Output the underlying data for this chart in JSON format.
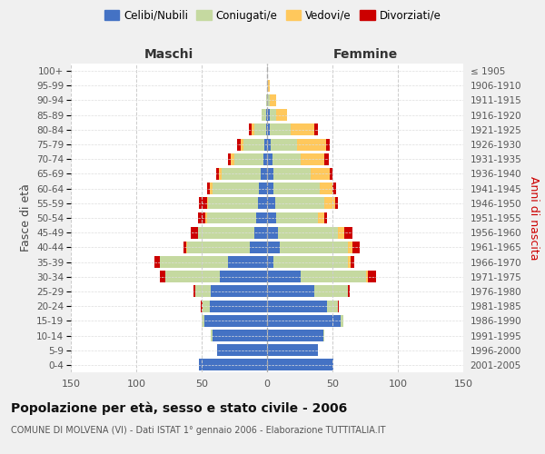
{
  "age_groups": [
    "0-4",
    "5-9",
    "10-14",
    "15-19",
    "20-24",
    "25-29",
    "30-34",
    "35-39",
    "40-44",
    "45-49",
    "50-54",
    "55-59",
    "60-64",
    "65-69",
    "70-74",
    "75-79",
    "80-84",
    "85-89",
    "90-94",
    "95-99",
    "100+"
  ],
  "birth_years": [
    "2001-2005",
    "1996-2000",
    "1991-1995",
    "1986-1990",
    "1981-1985",
    "1976-1980",
    "1971-1975",
    "1966-1970",
    "1961-1965",
    "1956-1960",
    "1951-1955",
    "1946-1950",
    "1941-1945",
    "1936-1940",
    "1931-1935",
    "1926-1930",
    "1921-1925",
    "1916-1920",
    "1911-1915",
    "1906-1910",
    "≤ 1905"
  ],
  "male": {
    "celibi": [
      52,
      38,
      42,
      48,
      44,
      43,
      36,
      30,
      13,
      10,
      8,
      7,
      6,
      5,
      3,
      2,
      1,
      1,
      0,
      0,
      0
    ],
    "coniugati": [
      0,
      0,
      1,
      2,
      5,
      12,
      42,
      52,
      48,
      43,
      38,
      38,
      36,
      30,
      22,
      16,
      9,
      3,
      1,
      0,
      0
    ],
    "vedovi": [
      0,
      0,
      0,
      0,
      0,
      0,
      0,
      0,
      1,
      0,
      1,
      1,
      2,
      2,
      3,
      2,
      2,
      0,
      0,
      0,
      0
    ],
    "divorziati": [
      0,
      0,
      0,
      0,
      2,
      1,
      4,
      4,
      2,
      5,
      6,
      6,
      2,
      2,
      2,
      3,
      2,
      0,
      0,
      0,
      0
    ]
  },
  "female": {
    "nubili": [
      51,
      39,
      43,
      56,
      46,
      36,
      26,
      5,
      10,
      8,
      7,
      6,
      5,
      5,
      4,
      3,
      2,
      2,
      1,
      1,
      0
    ],
    "coniugate": [
      0,
      0,
      1,
      2,
      8,
      26,
      50,
      57,
      52,
      46,
      32,
      38,
      35,
      28,
      22,
      20,
      16,
      5,
      1,
      0,
      0
    ],
    "vedove": [
      0,
      0,
      0,
      0,
      0,
      0,
      1,
      2,
      3,
      5,
      5,
      8,
      10,
      15,
      18,
      22,
      18,
      8,
      5,
      1,
      0
    ],
    "divorziate": [
      0,
      0,
      0,
      0,
      1,
      1,
      6,
      3,
      6,
      6,
      2,
      2,
      3,
      2,
      3,
      3,
      3,
      0,
      0,
      0,
      0
    ]
  },
  "colors": {
    "celibi_nubili": "#4472c4",
    "coniugati": "#c5d9a0",
    "vedovi": "#ffc85c",
    "divorziati": "#cc0000"
  },
  "xlim": 150,
  "title": "Popolazione per età, sesso e stato civile - 2006",
  "subtitle": "COMUNE DI MOLVENA (VI) - Dati ISTAT 1° gennaio 2006 - Elaborazione TUTTITALIA.IT",
  "ylabel_left": "Fasce di età",
  "ylabel_right": "Anni di nascita",
  "xlabel_male": "Maschi",
  "xlabel_female": "Femmine",
  "bg_color": "#f0f0f0",
  "plot_bg": "#ffffff"
}
